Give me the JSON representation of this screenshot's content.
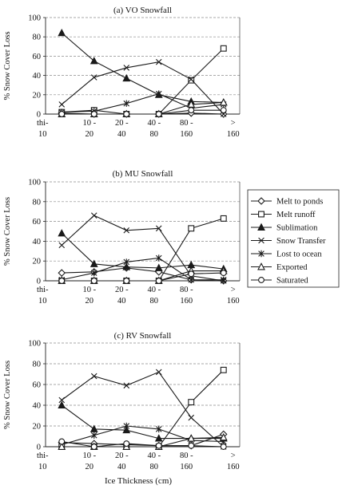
{
  "figure": {
    "xlabel": "Ice Thickness (cm)",
    "ylabel": "% Snow Cover Loss"
  },
  "legend": {
    "entries": [
      {
        "name": "Melt to ponds",
        "marker": "diamond"
      },
      {
        "name": "Melt runoff",
        "marker": "square"
      },
      {
        "name": "Sublimation",
        "marker": "triangle-filled"
      },
      {
        "name": "Snow Transfer",
        "marker": "x"
      },
      {
        "name": "Lost to ocean",
        "marker": "asterisk"
      },
      {
        "name": "Exported",
        "marker": "triangle-open"
      },
      {
        "name": "Saturated",
        "marker": "circle"
      }
    ]
  },
  "colors": {
    "line": "#1a1a1a",
    "grid": "#8a8a8a",
    "axis": "#222222",
    "background": "#ffffff"
  },
  "chart_data": [
    {
      "type": "line",
      "title": "(a) VO Snowfall",
      "ylabel": "% Snow Cover Loss",
      "xlabel": "",
      "ylim": [
        0,
        100
      ],
      "yticks": [
        0,
        20,
        40,
        60,
        80,
        100
      ],
      "grid": "horizontal dashed",
      "categories": [
        [
          "thi-",
          "10"
        ],
        [
          "10 -",
          "20"
        ],
        [
          "20 -",
          "40"
        ],
        [
          "40 -",
          "80"
        ],
        [
          "80 -",
          "160"
        ],
        [
          ">",
          "160"
        ]
      ],
      "series": [
        {
          "name": "Melt to ponds",
          "marker": "diamond",
          "values": [
            1,
            0,
            0,
            0,
            1,
            0
          ]
        },
        {
          "name": "Melt runoff",
          "marker": "square",
          "values": [
            2,
            4,
            0,
            0,
            35,
            68
          ]
        },
        {
          "name": "Sublimation",
          "marker": "triangle-filled",
          "values": [
            84,
            55,
            37,
            20,
            13,
            12
          ]
        },
        {
          "name": "Snow Transfer",
          "marker": "x",
          "values": [
            10,
            38,
            48,
            54,
            36,
            0
          ]
        },
        {
          "name": "Lost to ocean",
          "marker": "asterisk",
          "values": [
            2,
            3,
            11,
            21,
            6,
            10
          ]
        },
        {
          "name": "Exported",
          "marker": "triangle-open",
          "values": [
            0,
            0,
            0,
            0,
            10,
            12
          ]
        },
        {
          "name": "Saturated",
          "marker": "circle",
          "values": [
            0,
            0,
            0,
            0,
            4,
            4
          ]
        }
      ]
    },
    {
      "type": "line",
      "title": "(b) MU Snowfall",
      "ylabel": "% Snow Cover Loss",
      "xlabel": "",
      "ylim": [
        0,
        100
      ],
      "yticks": [
        0,
        20,
        40,
        60,
        80,
        100
      ],
      "grid": "horizontal dashed",
      "categories": [
        [
          "thi-",
          "10"
        ],
        [
          "10 -",
          "20"
        ],
        [
          "20 -",
          "40"
        ],
        [
          "40 -",
          "80"
        ],
        [
          "80 -",
          "160"
        ],
        [
          ">",
          "160"
        ]
      ],
      "series": [
        {
          "name": "Melt to ponds",
          "marker": "diamond",
          "values": [
            8,
            9,
            13,
            9,
            1,
            0
          ]
        },
        {
          "name": "Melt runoff",
          "marker": "square",
          "values": [
            0,
            0,
            0,
            0,
            53,
            63
          ]
        },
        {
          "name": "Sublimation",
          "marker": "triangle-filled",
          "values": [
            48,
            17,
            14,
            13,
            16,
            12
          ]
        },
        {
          "name": "Snow Transfer",
          "marker": "x",
          "values": [
            36,
            66,
            51,
            53,
            5,
            0
          ]
        },
        {
          "name": "Lost to ocean",
          "marker": "asterisk",
          "values": [
            1,
            8,
            19,
            23,
            1,
            1
          ]
        },
        {
          "name": "Exported",
          "marker": "triangle-open",
          "values": [
            0,
            0,
            0,
            0,
            10,
            10
          ]
        },
        {
          "name": "Saturated",
          "marker": "circle",
          "values": [
            0,
            0,
            0,
            0,
            7,
            8
          ]
        }
      ]
    },
    {
      "type": "line",
      "title": "(c) RV Snowfall",
      "ylabel": "% Snow Cover Loss",
      "xlabel": "Ice Thickness (cm)",
      "ylim": [
        0,
        100
      ],
      "yticks": [
        0,
        20,
        40,
        60,
        80,
        100
      ],
      "grid": "horizontal dashed",
      "categories": [
        [
          "thi-",
          "10"
        ],
        [
          "10 -",
          "20"
        ],
        [
          "20 -",
          "40"
        ],
        [
          "40 -",
          "80"
        ],
        [
          "80 -",
          "160"
        ],
        [
          ">",
          "160"
        ]
      ],
      "series": [
        {
          "name": "Melt to ponds",
          "marker": "diamond",
          "values": [
            4,
            3,
            2,
            1,
            1,
            12
          ]
        },
        {
          "name": "Melt runoff",
          "marker": "square",
          "values": [
            0,
            0,
            0,
            0,
            43,
            74
          ]
        },
        {
          "name": "Sublimation",
          "marker": "triangle-filled",
          "values": [
            40,
            17,
            16,
            8,
            8,
            8
          ]
        },
        {
          "name": "Snow Transfer",
          "marker": "x",
          "values": [
            45,
            68,
            59,
            72,
            28,
            0
          ]
        },
        {
          "name": "Lost to ocean",
          "marker": "asterisk",
          "values": [
            2,
            11,
            20,
            17,
            6,
            5
          ]
        },
        {
          "name": "Exported",
          "marker": "triangle-open",
          "values": [
            0,
            0,
            0,
            0,
            8,
            9
          ]
        },
        {
          "name": "Saturated",
          "marker": "circle",
          "values": [
            5,
            0,
            3,
            1,
            1,
            0
          ]
        }
      ]
    }
  ]
}
